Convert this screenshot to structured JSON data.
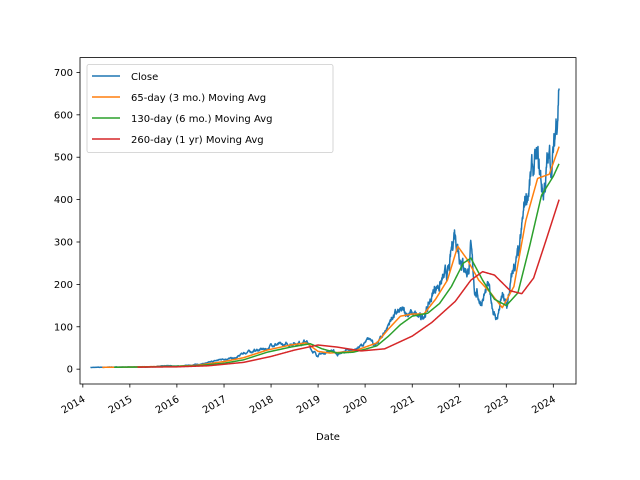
{
  "chart_data": {
    "type": "line",
    "xlabel": "Date",
    "ylabel": "",
    "xlim": [
      "2013-12-10",
      "2024-06-25"
    ],
    "ylim": [
      -35,
      735
    ],
    "x_ticks": [
      "2014",
      "2015",
      "2016",
      "2017",
      "2018",
      "2019",
      "2020",
      "2021",
      "2022",
      "2023",
      "2024"
    ],
    "y_ticks": [
      0,
      100,
      200,
      300,
      400,
      500,
      600,
      700
    ],
    "grid": false,
    "legend_position": "top-left",
    "series": [
      {
        "name": "Close",
        "color": "#1f77b4",
        "points": [
          [
            "2014-03-01",
            4
          ],
          [
            "2014-06-01",
            4.5
          ],
          [
            "2014-09-01",
            5
          ],
          [
            "2015-01-01",
            5
          ],
          [
            "2015-06-01",
            5.5
          ],
          [
            "2015-11-01",
            8
          ],
          [
            "2016-02-01",
            7
          ],
          [
            "2016-06-01",
            11
          ],
          [
            "2016-09-01",
            15
          ],
          [
            "2017-01-01",
            25
          ],
          [
            "2017-04-01",
            25
          ],
          [
            "2017-06-01",
            38
          ],
          [
            "2017-09-01",
            44
          ],
          [
            "2017-12-01",
            48
          ],
          [
            "2018-01-15",
            60
          ],
          [
            "2018-04-01",
            55
          ],
          [
            "2018-07-01",
            62
          ],
          [
            "2018-10-01",
            65
          ],
          [
            "2018-11-15",
            45
          ],
          [
            "2018-12-25",
            33
          ],
          [
            "2019-02-15",
            38
          ],
          [
            "2019-04-15",
            45
          ],
          [
            "2019-06-01",
            35
          ],
          [
            "2019-08-01",
            42
          ],
          [
            "2019-10-01",
            45
          ],
          [
            "2020-01-01",
            60
          ],
          [
            "2020-02-20",
            75
          ],
          [
            "2020-03-18",
            52
          ],
          [
            "2020-06-01",
            88
          ],
          [
            "2020-08-01",
            125
          ],
          [
            "2020-09-01",
            130
          ],
          [
            "2020-11-01",
            135
          ],
          [
            "2021-01-01",
            130
          ],
          [
            "2021-03-08",
            118
          ],
          [
            "2021-05-01",
            145
          ],
          [
            "2021-07-01",
            195
          ],
          [
            "2021-09-01",
            210
          ],
          [
            "2021-10-15",
            230
          ],
          [
            "2021-11-25",
            330
          ],
          [
            "2022-01-05",
            280
          ],
          [
            "2022-02-01",
            250
          ],
          [
            "2022-03-10",
            230
          ],
          [
            "2022-03-30",
            280
          ],
          [
            "2022-05-01",
            190
          ],
          [
            "2022-06-15",
            160
          ],
          [
            "2022-08-15",
            190
          ],
          [
            "2022-10-01",
            130
          ],
          [
            "2022-10-20",
            118
          ],
          [
            "2022-12-01",
            170
          ],
          [
            "2023-01-05",
            145
          ],
          [
            "2023-03-01",
            240
          ],
          [
            "2023-04-15",
            270
          ],
          [
            "2023-05-26",
            390
          ],
          [
            "2023-06-20",
            430
          ],
          [
            "2023-08-01",
            470
          ],
          [
            "2023-09-01",
            480
          ],
          [
            "2023-10-15",
            415
          ],
          [
            "2023-11-15",
            480
          ],
          [
            "2023-12-15",
            490
          ],
          [
            "2024-01-10",
            520
          ],
          [
            "2024-02-01",
            620
          ],
          [
            "2024-02-15",
            700
          ]
        ]
      },
      {
        "name": "65-day (3 mo.) Moving Avg",
        "color": "#ff7f0e",
        "points": [
          [
            "2014-06-01",
            4.3
          ],
          [
            "2015-01-01",
            5
          ],
          [
            "2016-01-01",
            7
          ],
          [
            "2016-06-01",
            9
          ],
          [
            "2017-01-01",
            18
          ],
          [
            "2017-06-01",
            27
          ],
          [
            "2017-12-01",
            45
          ],
          [
            "2018-06-01",
            57
          ],
          [
            "2018-10-01",
            62
          ],
          [
            "2019-01-01",
            42
          ],
          [
            "2019-04-01",
            38
          ],
          [
            "2019-07-01",
            40
          ],
          [
            "2019-10-01",
            42
          ],
          [
            "2020-01-01",
            52
          ],
          [
            "2020-04-01",
            62
          ],
          [
            "2020-07-01",
            95
          ],
          [
            "2020-10-01",
            125
          ],
          [
            "2021-01-01",
            130
          ],
          [
            "2021-04-01",
            130
          ],
          [
            "2021-07-01",
            165
          ],
          [
            "2021-10-01",
            210
          ],
          [
            "2021-12-20",
            290
          ],
          [
            "2022-03-01",
            260
          ],
          [
            "2022-06-01",
            210
          ],
          [
            "2022-09-01",
            180
          ],
          [
            "2022-12-01",
            145
          ],
          [
            "2023-03-01",
            195
          ],
          [
            "2023-06-01",
            350
          ],
          [
            "2023-09-01",
            450
          ],
          [
            "2023-12-01",
            460
          ],
          [
            "2024-02-15",
            525
          ]
        ]
      },
      {
        "name": "130-day (6 mo.) Moving Avg",
        "color": "#2ca02c",
        "points": [
          [
            "2014-09-01",
            4.5
          ],
          [
            "2015-06-01",
            5.2
          ],
          [
            "2016-06-01",
            8
          ],
          [
            "2017-01-01",
            14
          ],
          [
            "2017-06-01",
            22
          ],
          [
            "2017-12-01",
            40
          ],
          [
            "2018-06-01",
            52
          ],
          [
            "2018-11-01",
            60
          ],
          [
            "2019-02-01",
            48
          ],
          [
            "2019-06-01",
            38
          ],
          [
            "2019-10-01",
            40
          ],
          [
            "2020-01-01",
            47
          ],
          [
            "2020-04-01",
            55
          ],
          [
            "2020-07-01",
            78
          ],
          [
            "2020-10-01",
            105
          ],
          [
            "2021-01-01",
            125
          ],
          [
            "2021-05-01",
            132
          ],
          [
            "2021-08-01",
            155
          ],
          [
            "2021-11-01",
            195
          ],
          [
            "2022-02-01",
            250
          ],
          [
            "2022-04-01",
            262
          ],
          [
            "2022-07-01",
            210
          ],
          [
            "2022-10-01",
            165
          ],
          [
            "2023-01-01",
            150
          ],
          [
            "2023-04-01",
            180
          ],
          [
            "2023-07-01",
            290
          ],
          [
            "2023-10-01",
            410
          ],
          [
            "2024-01-01",
            455
          ],
          [
            "2024-02-15",
            485
          ]
        ]
      },
      {
        "name": "260-day (1 yr) Moving Avg",
        "color": "#d62728",
        "points": [
          [
            "2015-03-01",
            4.8
          ],
          [
            "2016-01-01",
            5.5
          ],
          [
            "2016-09-01",
            8
          ],
          [
            "2017-06-01",
            16
          ],
          [
            "2018-01-01",
            30
          ],
          [
            "2018-07-01",
            45
          ],
          [
            "2019-01-01",
            57
          ],
          [
            "2019-06-01",
            52
          ],
          [
            "2019-12-01",
            43
          ],
          [
            "2020-06-01",
            48
          ],
          [
            "2021-01-01",
            78
          ],
          [
            "2021-06-01",
            110
          ],
          [
            "2021-12-01",
            160
          ],
          [
            "2022-04-01",
            210
          ],
          [
            "2022-07-01",
            230
          ],
          [
            "2022-10-01",
            222
          ],
          [
            "2023-02-01",
            185
          ],
          [
            "2023-05-01",
            178
          ],
          [
            "2023-08-01",
            215
          ],
          [
            "2023-11-01",
            300
          ],
          [
            "2024-02-15",
            400
          ]
        ]
      }
    ]
  }
}
